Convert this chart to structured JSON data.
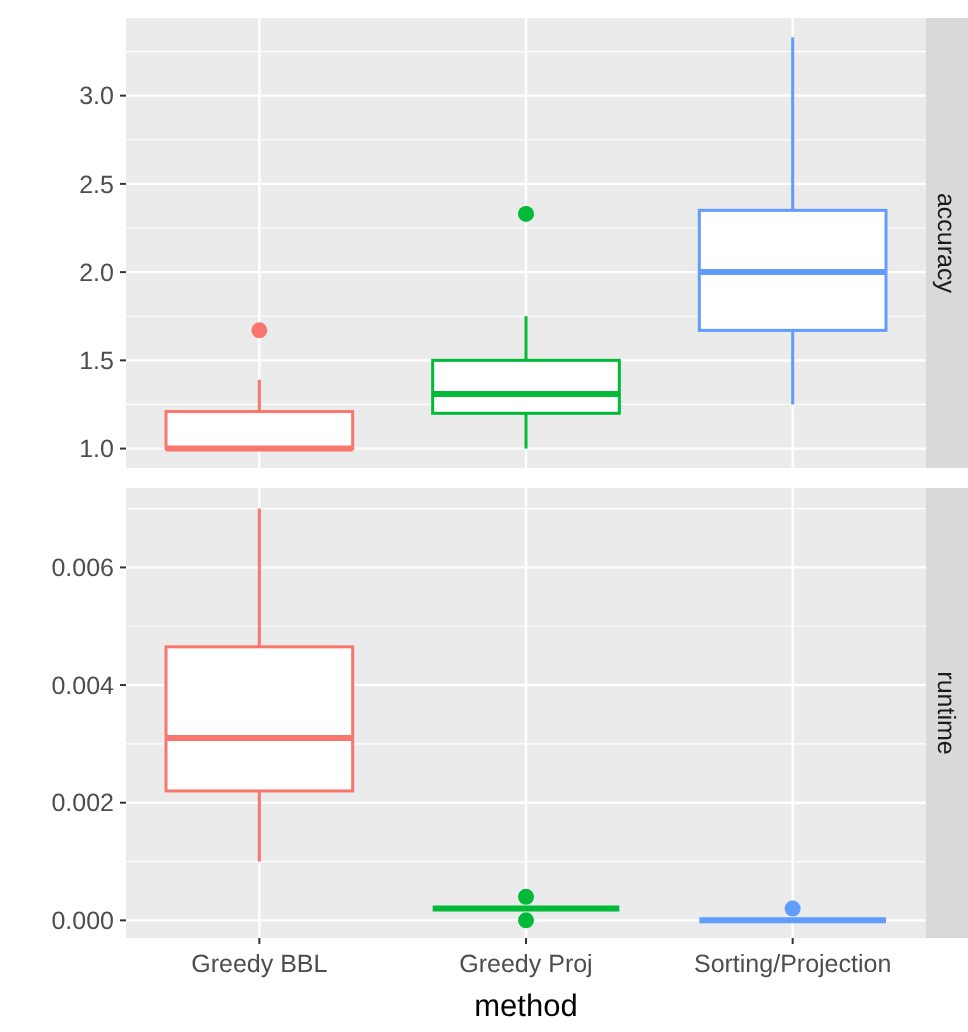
{
  "chart_data": [
    {
      "type": "box",
      "title": "accuracy",
      "colors": [
        "#f8766d",
        "#00ba38",
        "#619cff"
      ],
      "boxes": [
        {
          "low": 1.0,
          "q1": 1.0,
          "median": 1.0,
          "q3": 1.21,
          "high": 1.39,
          "outliers": [
            1.67
          ]
        },
        {
          "low": 1.0,
          "q1": 1.2,
          "median": 1.31,
          "q3": 1.5,
          "high": 1.75,
          "outliers": [
            2.33
          ]
        },
        {
          "low": 1.25,
          "q1": 1.67,
          "median": 2.0,
          "q3": 2.35,
          "high": 3.33
        }
      ],
      "ylim": [
        0.89,
        3.44
      ],
      "yticks": [
        {
          "value": 1,
          "label": "1.0"
        },
        {
          "value": 1.5,
          "label": "1.5"
        },
        {
          "value": 2,
          "label": "2.0"
        },
        {
          "value": 2.5,
          "label": "2.5"
        },
        {
          "value": 3,
          "label": "3.0"
        }
      ],
      "grid": true,
      "tick_labels": "y"
    },
    {
      "type": "box",
      "title": "runtime",
      "xlabel": "method",
      "categories": [
        "Greedy BBL",
        "Greedy Proj",
        "Sorting/Projection"
      ],
      "colors": [
        "#f8766d",
        "#00ba38",
        "#619cff"
      ],
      "boxes": [
        {
          "low": 0.001,
          "q1": 0.0022,
          "median": 0.0031,
          "q3": 0.00465,
          "high": 0.007
        },
        {
          "low": 0.0002,
          "q1": 0.0002,
          "median": 0.0002,
          "q3": 0.0002,
          "high": 0.0002,
          "outliers": [
            0.0004,
            0.0
          ]
        },
        {
          "low": 0.0,
          "q1": 0.0,
          "median": 0.0,
          "q3": 0.0,
          "high": 0.0,
          "outliers": [
            0.0002
          ]
        }
      ],
      "ylim": [
        -0.0003,
        0.00735
      ],
      "yticks": [
        {
          "value": 0,
          "label": "0.000"
        },
        {
          "value": 0.002,
          "label": "0.002"
        },
        {
          "value": 0.004,
          "label": "0.004"
        },
        {
          "value": 0.006,
          "label": "0.006"
        }
      ],
      "grid": true
    }
  ]
}
